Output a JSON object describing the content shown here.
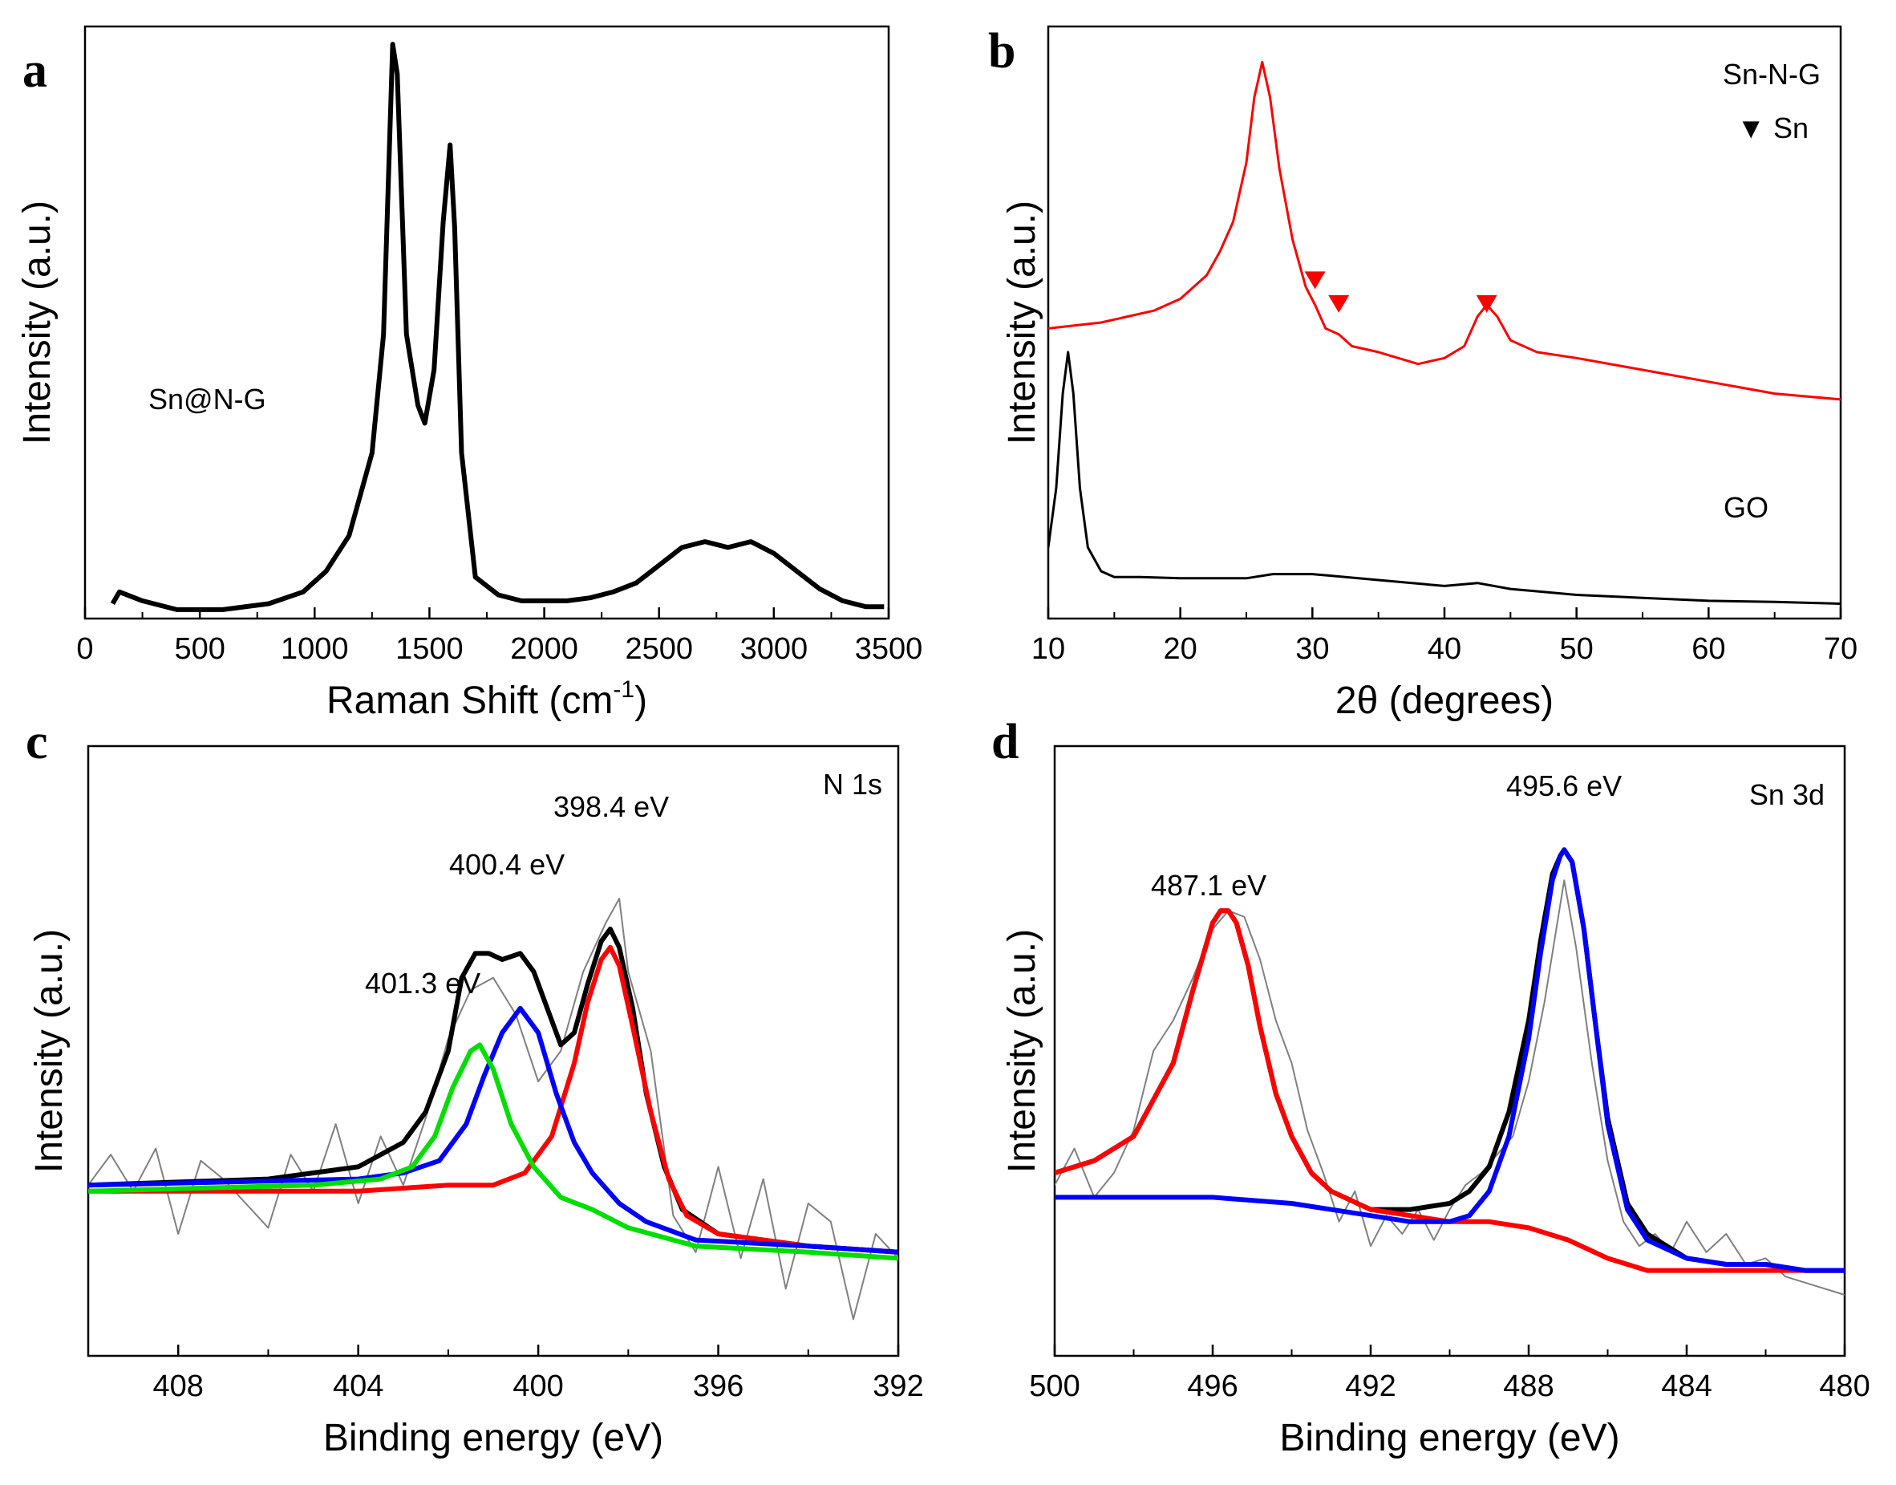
{
  "chart_data": [
    {
      "panel": "a",
      "type": "line",
      "title": "",
      "xlabel": "Raman Shift  (cm",
      "xlabel_sup": "-1",
      "xlabel_end": ")",
      "ylabel": "Intensity (a.u.)",
      "xlim": [
        0,
        3500
      ],
      "ylim": [
        0,
        100
      ],
      "xticks": [
        0,
        500,
        1000,
        1500,
        2000,
        2500,
        3000,
        3500
      ],
      "annotations": [
        {
          "text": "Sn@N-G"
        }
      ],
      "series": [
        {
          "name": "Sn@N-G",
          "color": "#000000",
          "x": [
            120,
            150,
            250,
            400,
            600,
            800,
            950,
            1050,
            1150,
            1250,
            1300,
            1340,
            1360,
            1400,
            1450,
            1480,
            1520,
            1560,
            1590,
            1610,
            1640,
            1700,
            1800,
            1900,
            2000,
            2100,
            2200,
            2300,
            2400,
            2500,
            2600,
            2700,
            2800,
            2900,
            3000,
            3100,
            3200,
            3300,
            3400,
            3480
          ],
          "y": [
            2.5,
            4.5,
            3,
            1.5,
            1.5,
            2.5,
            4.5,
            8,
            14,
            28,
            48,
            97,
            92,
            48,
            36,
            33,
            42,
            67,
            80,
            66,
            28,
            7,
            4,
            3,
            3,
            3,
            3.5,
            4.5,
            6,
            9,
            12,
            13,
            12,
            13,
            11,
            8,
            5,
            3,
            2,
            2
          ]
        }
      ]
    },
    {
      "panel": "b",
      "type": "line",
      "title": "",
      "xlabel": "2θ (degrees)",
      "ylabel": "Intensity (a.u.)",
      "xlim": [
        10,
        70
      ],
      "ylim": [
        0,
        100
      ],
      "xticks": [
        10,
        20,
        30,
        40,
        50,
        60,
        70
      ],
      "legend": [
        {
          "text": "Sn-N-G",
          "color": "#ff0000"
        },
        {
          "text": "Sn",
          "marker": "▼",
          "color": "#ff0000"
        }
      ],
      "annotations": [
        {
          "text": "GO"
        }
      ],
      "markers": [
        {
          "x": 30.2,
          "y": 57
        },
        {
          "x": 32.0,
          "y": 53
        },
        {
          "x": 43.2,
          "y": 53
        }
      ],
      "series": [
        {
          "name": "Sn-N-G",
          "color": "#ff0000",
          "x": [
            10,
            14,
            18,
            20,
            22,
            23,
            24,
            25,
            25.6,
            26.2,
            26.8,
            27.5,
            28.5,
            29.5,
            30.2,
            31,
            32,
            33,
            35,
            38,
            40,
            41.5,
            42.5,
            43.2,
            44,
            45,
            47,
            50,
            55,
            60,
            65,
            70
          ],
          "y": [
            49,
            50,
            52,
            54,
            58,
            62,
            67,
            77,
            88,
            94,
            88,
            76,
            64,
            56,
            53,
            49,
            48,
            46,
            45,
            43,
            44,
            46,
            51,
            53,
            51,
            47,
            45,
            44,
            42,
            40,
            38,
            37
          ]
        },
        {
          "name": "GO",
          "color": "#000000",
          "x": [
            10,
            10.6,
            11.1,
            11.5,
            11.9,
            12.4,
            13,
            14,
            15,
            17,
            20,
            25,
            27,
            30,
            35,
            40,
            42.5,
            45,
            50,
            55,
            60,
            65,
            70
          ],
          "y": [
            12,
            22,
            38,
            45,
            38,
            22,
            12,
            8,
            7,
            7,
            6.8,
            6.8,
            7.5,
            7.5,
            6.5,
            5.5,
            6,
            5,
            4,
            3.5,
            3,
            2.8,
            2.5
          ]
        }
      ]
    },
    {
      "panel": "c",
      "type": "line",
      "title": "",
      "xlabel": "Binding energy  (eV)",
      "ylabel": "Intensity (a.u.)",
      "xlim": [
        410,
        392
      ],
      "ylim": [
        0,
        100
      ],
      "xticks": [
        408,
        404,
        400,
        396,
        392
      ],
      "annotations": [
        {
          "text": "N 1s"
        },
        {
          "text": "398.4 eV"
        },
        {
          "text": "400.4 eV"
        },
        {
          "text": "401.3 eV"
        }
      ],
      "series": [
        {
          "name": "raw",
          "color": "#808080",
          "x": [
            410,
            409.5,
            409,
            408.5,
            408,
            407.5,
            407,
            406.5,
            406,
            405.5,
            405,
            404.5,
            404,
            403.5,
            403,
            402.5,
            402,
            401.5,
            401,
            400.5,
            400,
            399.5,
            399,
            398.5,
            398.2,
            398,
            397.5,
            397,
            396.5,
            396,
            395.5,
            395,
            394.5,
            394,
            393.5,
            393,
            392.5,
            392
          ],
          "y": [
            28,
            33,
            27,
            34,
            20,
            32,
            29,
            25,
            21,
            33,
            27,
            38,
            25,
            36,
            28,
            39,
            52,
            60,
            62,
            56,
            45,
            50,
            63,
            71,
            75,
            63,
            50,
            23,
            17,
            31,
            16,
            29,
            11,
            25,
            22,
            6,
            20,
            16
          ]
        },
        {
          "name": "envelope",
          "color": "#000000",
          "x": [
            410,
            406,
            404,
            403,
            402.5,
            402,
            401.7,
            401.4,
            401.1,
            400.8,
            400.4,
            400.1,
            399.8,
            399.5,
            399.2,
            398.9,
            398.6,
            398.4,
            398.2,
            397.9,
            397.6,
            397.2,
            396.8,
            396,
            394,
            392
          ],
          "y": [
            28,
            29,
            31,
            35,
            40,
            50,
            62,
            66,
            66,
            65,
            66,
            63,
            57,
            51,
            53,
            61,
            68,
            70,
            67,
            57,
            43,
            31,
            24,
            20,
            18,
            17
          ]
        },
        {
          "name": "398.4 eV",
          "color": "#ff0000",
          "x": [
            410,
            404,
            402,
            401,
            400.3,
            399.7,
            399.2,
            398.9,
            398.6,
            398.4,
            398.2,
            397.9,
            397.5,
            397.1,
            396.7,
            396,
            394,
            392
          ],
          "y": [
            27,
            27,
            28,
            28,
            30,
            36,
            48,
            58,
            65,
            67,
            64,
            54,
            40,
            29,
            23,
            20,
            18,
            17
          ]
        },
        {
          "name": "400.4 eV",
          "color": "#0000ff",
          "x": [
            410,
            404,
            403,
            402.2,
            401.6,
            401.2,
            400.8,
            400.4,
            400,
            399.6,
            399.2,
            398.8,
            398.2,
            397.6,
            396.5,
            394,
            392
          ],
          "y": [
            28,
            29,
            30,
            32,
            38,
            46,
            53,
            57,
            53,
            43,
            35,
            30,
            25,
            22,
            19,
            18,
            17
          ]
        },
        {
          "name": "401.3 eV",
          "color": "#00dd00",
          "x": [
            410,
            405,
            403.5,
            402.8,
            402.3,
            401.9,
            401.5,
            401.3,
            401,
            400.6,
            400.1,
            399.5,
            398.8,
            398,
            396.5,
            394,
            392
          ],
          "y": [
            27,
            28,
            29,
            31,
            36,
            44,
            50,
            51,
            47,
            38,
            31,
            26,
            24,
            21,
            18,
            17,
            16
          ]
        }
      ]
    },
    {
      "panel": "d",
      "type": "line",
      "title": "",
      "xlabel": "Binding energy  (eV)",
      "ylabel": "Intensity (a.u.)",
      "xlim": [
        500,
        480
      ],
      "ylim": [
        0,
        100
      ],
      "xticks": [
        500,
        496,
        492,
        488,
        484,
        480
      ],
      "annotations": [
        {
          "text": "Sn 3d"
        },
        {
          "text": "495.6 eV"
        },
        {
          "text": "487.1 eV"
        }
      ],
      "series": [
        {
          "name": "raw",
          "color": "#808080",
          "x": [
            500,
            499.5,
            499,
            498.5,
            498,
            497.5,
            497,
            496.5,
            496,
            495.6,
            495.2,
            494.8,
            494.4,
            494,
            493.6,
            493.2,
            492.8,
            492.4,
            492,
            491.6,
            491.2,
            490.8,
            490.4,
            490,
            489.6,
            489.2,
            488.8,
            488.4,
            488,
            487.6,
            487.1,
            486.8,
            486.4,
            486,
            485.6,
            485.2,
            484.8,
            484.4,
            484,
            483.5,
            483,
            482.5,
            482,
            481.5,
            481,
            480.5,
            480
          ],
          "y": [
            28,
            34,
            26,
            30,
            37,
            50,
            55,
            62,
            70,
            73,
            72,
            65,
            55,
            48,
            37,
            30,
            22,
            27,
            18,
            23,
            20,
            24,
            19,
            24,
            28,
            30,
            33,
            36,
            45,
            58,
            78,
            67,
            48,
            32,
            22,
            18,
            20,
            17,
            22,
            17,
            20,
            15,
            16,
            13,
            12,
            11,
            10
          ]
        },
        {
          "name": "envelope",
          "color": "#000000",
          "x": [
            500,
            499,
            498,
            497,
            496.5,
            496,
            495.8,
            495.6,
            495.4,
            495.1,
            494.8,
            494.4,
            494,
            493.5,
            493,
            492,
            491,
            490,
            489.5,
            489,
            488.5,
            488,
            487.7,
            487.4,
            487.2,
            487.1,
            486.9,
            486.6,
            486.3,
            486,
            485.5,
            485,
            484,
            483,
            482,
            481,
            480
          ],
          "y": [
            30,
            32,
            36,
            48,
            60,
            71,
            73,
            73,
            71,
            64,
            54,
            43,
            36,
            30,
            27,
            24,
            24,
            25,
            27,
            31,
            40,
            55,
            68,
            79,
            82,
            83,
            81,
            70,
            54,
            39,
            25,
            20,
            16,
            15,
            15,
            14,
            14
          ]
        },
        {
          "name": "495.6 eV",
          "color": "#ff0000",
          "x": [
            500,
            499,
            498,
            497,
            496.5,
            496,
            495.8,
            495.6,
            495.4,
            495.1,
            494.8,
            494.4,
            494,
            493.5,
            493,
            492,
            491,
            490,
            489,
            488,
            487,
            486,
            485,
            484,
            482,
            480
          ],
          "y": [
            30,
            32,
            36,
            48,
            60,
            71,
            73,
            73,
            71,
            64,
            54,
            43,
            36,
            30,
            27,
            24,
            23,
            22,
            22,
            21,
            19,
            16,
            14,
            14,
            14,
            14
          ]
        },
        {
          "name": "487.1 eV",
          "color": "#0000ff",
          "x": [
            500,
            498,
            496,
            494,
            492,
            491,
            490,
            489.5,
            489,
            488.5,
            488,
            487.7,
            487.4,
            487.2,
            487.1,
            486.9,
            486.6,
            486.3,
            486,
            485.5,
            485,
            484,
            483,
            482,
            481,
            480
          ],
          "y": [
            26,
            26,
            26,
            25,
            23,
            22,
            22,
            23,
            27,
            36,
            52,
            66,
            78,
            82,
            83,
            81,
            70,
            54,
            38,
            24,
            19,
            16,
            15,
            15,
            14,
            14
          ]
        }
      ]
    }
  ]
}
